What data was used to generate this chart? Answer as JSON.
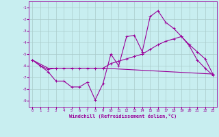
{
  "xlabel": "Windchill (Refroidissement éolien,°C)",
  "bg_color": "#c8eef0",
  "line_color": "#990099",
  "grid_color": "#aacccc",
  "ylim": [
    -9.5,
    -0.5
  ],
  "xlim": [
    -0.5,
    23.5
  ],
  "yticks": [
    -9,
    -8,
    -7,
    -6,
    -5,
    -4,
    -3,
    -2,
    -1
  ],
  "xticks": [
    0,
    1,
    2,
    3,
    4,
    5,
    6,
    7,
    8,
    9,
    10,
    11,
    12,
    13,
    14,
    15,
    16,
    17,
    18,
    19,
    20,
    21,
    22,
    23
  ],
  "line1_x": [
    0,
    1,
    2,
    3,
    4,
    5,
    6,
    7,
    8,
    9,
    10,
    11,
    12,
    13,
    14,
    15,
    16,
    17,
    18,
    19,
    20,
    21,
    22,
    23
  ],
  "line1_y": [
    -5.5,
    -6.0,
    -6.5,
    -7.3,
    -7.3,
    -7.8,
    -7.8,
    -7.4,
    -8.9,
    -7.5,
    -5.0,
    -6.0,
    -3.5,
    -3.4,
    -4.8,
    -1.8,
    -1.3,
    -2.3,
    -2.8,
    -3.5,
    -4.3,
    -5.5,
    -6.2,
    -6.8
  ],
  "line2_x": [
    0,
    1,
    2,
    3,
    4,
    5,
    6,
    7,
    8,
    9,
    10,
    11,
    12,
    13,
    14,
    15,
    16,
    17,
    18,
    19,
    20,
    21,
    22,
    23
  ],
  "line2_y": [
    -5.5,
    -6.0,
    -6.3,
    -6.2,
    -6.2,
    -6.2,
    -6.2,
    -6.2,
    -6.2,
    -6.2,
    -5.8,
    -5.6,
    -5.4,
    -5.2,
    -5.0,
    -4.6,
    -4.2,
    -3.9,
    -3.7,
    -3.5,
    -4.2,
    -4.8,
    -5.4,
    -6.7
  ],
  "line3_x": [
    0,
    2,
    9,
    23
  ],
  "line3_y": [
    -5.5,
    -6.2,
    -6.2,
    -6.7
  ]
}
